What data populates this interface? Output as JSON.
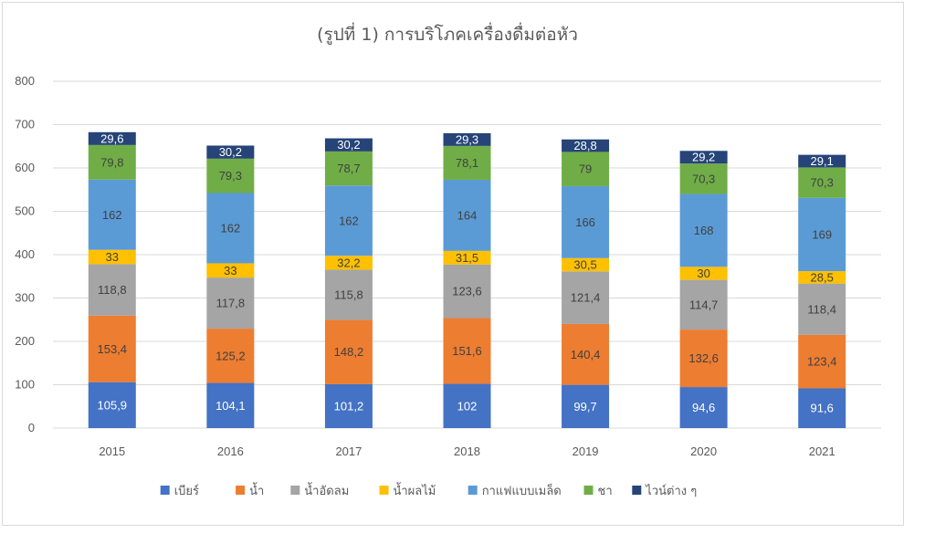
{
  "chart_data": {
    "type": "bar",
    "stacked": true,
    "title": "(รูปที่ 1) การบริโภคเครื่องดื่มต่อหัว",
    "xlabel": "",
    "ylabel": "",
    "ylim": [
      0,
      800
    ],
    "yticks": [
      0,
      100,
      200,
      300,
      400,
      500,
      600,
      700,
      800
    ],
    "grid": true,
    "legend_position": "bottom",
    "categories": [
      "2015",
      "2016",
      "2017",
      "2018",
      "2019",
      "2020",
      "2021"
    ],
    "series": [
      {
        "name": "เบียร์",
        "color": "#4472c4",
        "label_color": "#ffffff",
        "values": [
          105.9,
          104.1,
          101.2,
          102,
          99.7,
          94.6,
          91.6
        ],
        "labels": [
          "105,9",
          "104,1",
          "101,2",
          "102",
          "99,7",
          "94,6",
          "91,6"
        ]
      },
      {
        "name": "น้ำ",
        "color": "#ed7d31",
        "label_color": "#404040",
        "values": [
          153.4,
          125.2,
          148.2,
          151.6,
          140.4,
          132.6,
          123.4
        ],
        "labels": [
          "153,4",
          "125,2",
          "148,2",
          "151,6",
          "140,4",
          "132,6",
          "123,4"
        ]
      },
      {
        "name": "น้ำอัดลม",
        "color": "#a5a5a5",
        "label_color": "#404040",
        "values": [
          118.8,
          117.8,
          115.8,
          123.6,
          121.4,
          114.7,
          118.4
        ],
        "labels": [
          "118,8",
          "117,8",
          "115,8",
          "123,6",
          "121,4",
          "114,7",
          "118,4"
        ]
      },
      {
        "name": "น้ำผลไม้",
        "color": "#ffc000",
        "label_color": "#404040",
        "values": [
          33,
          33,
          32.2,
          31.5,
          30.5,
          30,
          28.5
        ],
        "labels": [
          "33",
          "33",
          "32,2",
          "31,5",
          "30,5",
          "30",
          "28,5"
        ]
      },
      {
        "name": "กาแฟแบบเมล็ด",
        "color": "#5b9bd5",
        "label_color": "#404040",
        "values": [
          162,
          162,
          162,
          164,
          166,
          168,
          169
        ],
        "labels": [
          "162",
          "162",
          "162",
          "164",
          "166",
          "168",
          "169"
        ]
      },
      {
        "name": "ชา",
        "color": "#70ad47",
        "label_color": "#404040",
        "values": [
          79.8,
          79.3,
          78.7,
          78.1,
          79,
          70.3,
          70.3
        ],
        "labels": [
          "79,8",
          "79,3",
          "78,7",
          "78,1",
          "79",
          "70,3",
          "70,3"
        ]
      },
      {
        "name": "ไวน์ต่าง ๆ",
        "color": "#264478",
        "label_color": "#ffffff",
        "values": [
          29.6,
          30.2,
          30.2,
          29.3,
          28.8,
          29.2,
          29.1
        ],
        "labels": [
          "29,6",
          "30,2",
          "30,2",
          "29,3",
          "28,8",
          "29,2",
          "29,1"
        ]
      }
    ]
  },
  "colors": {
    "gridline": "#d9d9d9",
    "axis_text": "#595959",
    "frame_border": "#d9d9d9"
  }
}
